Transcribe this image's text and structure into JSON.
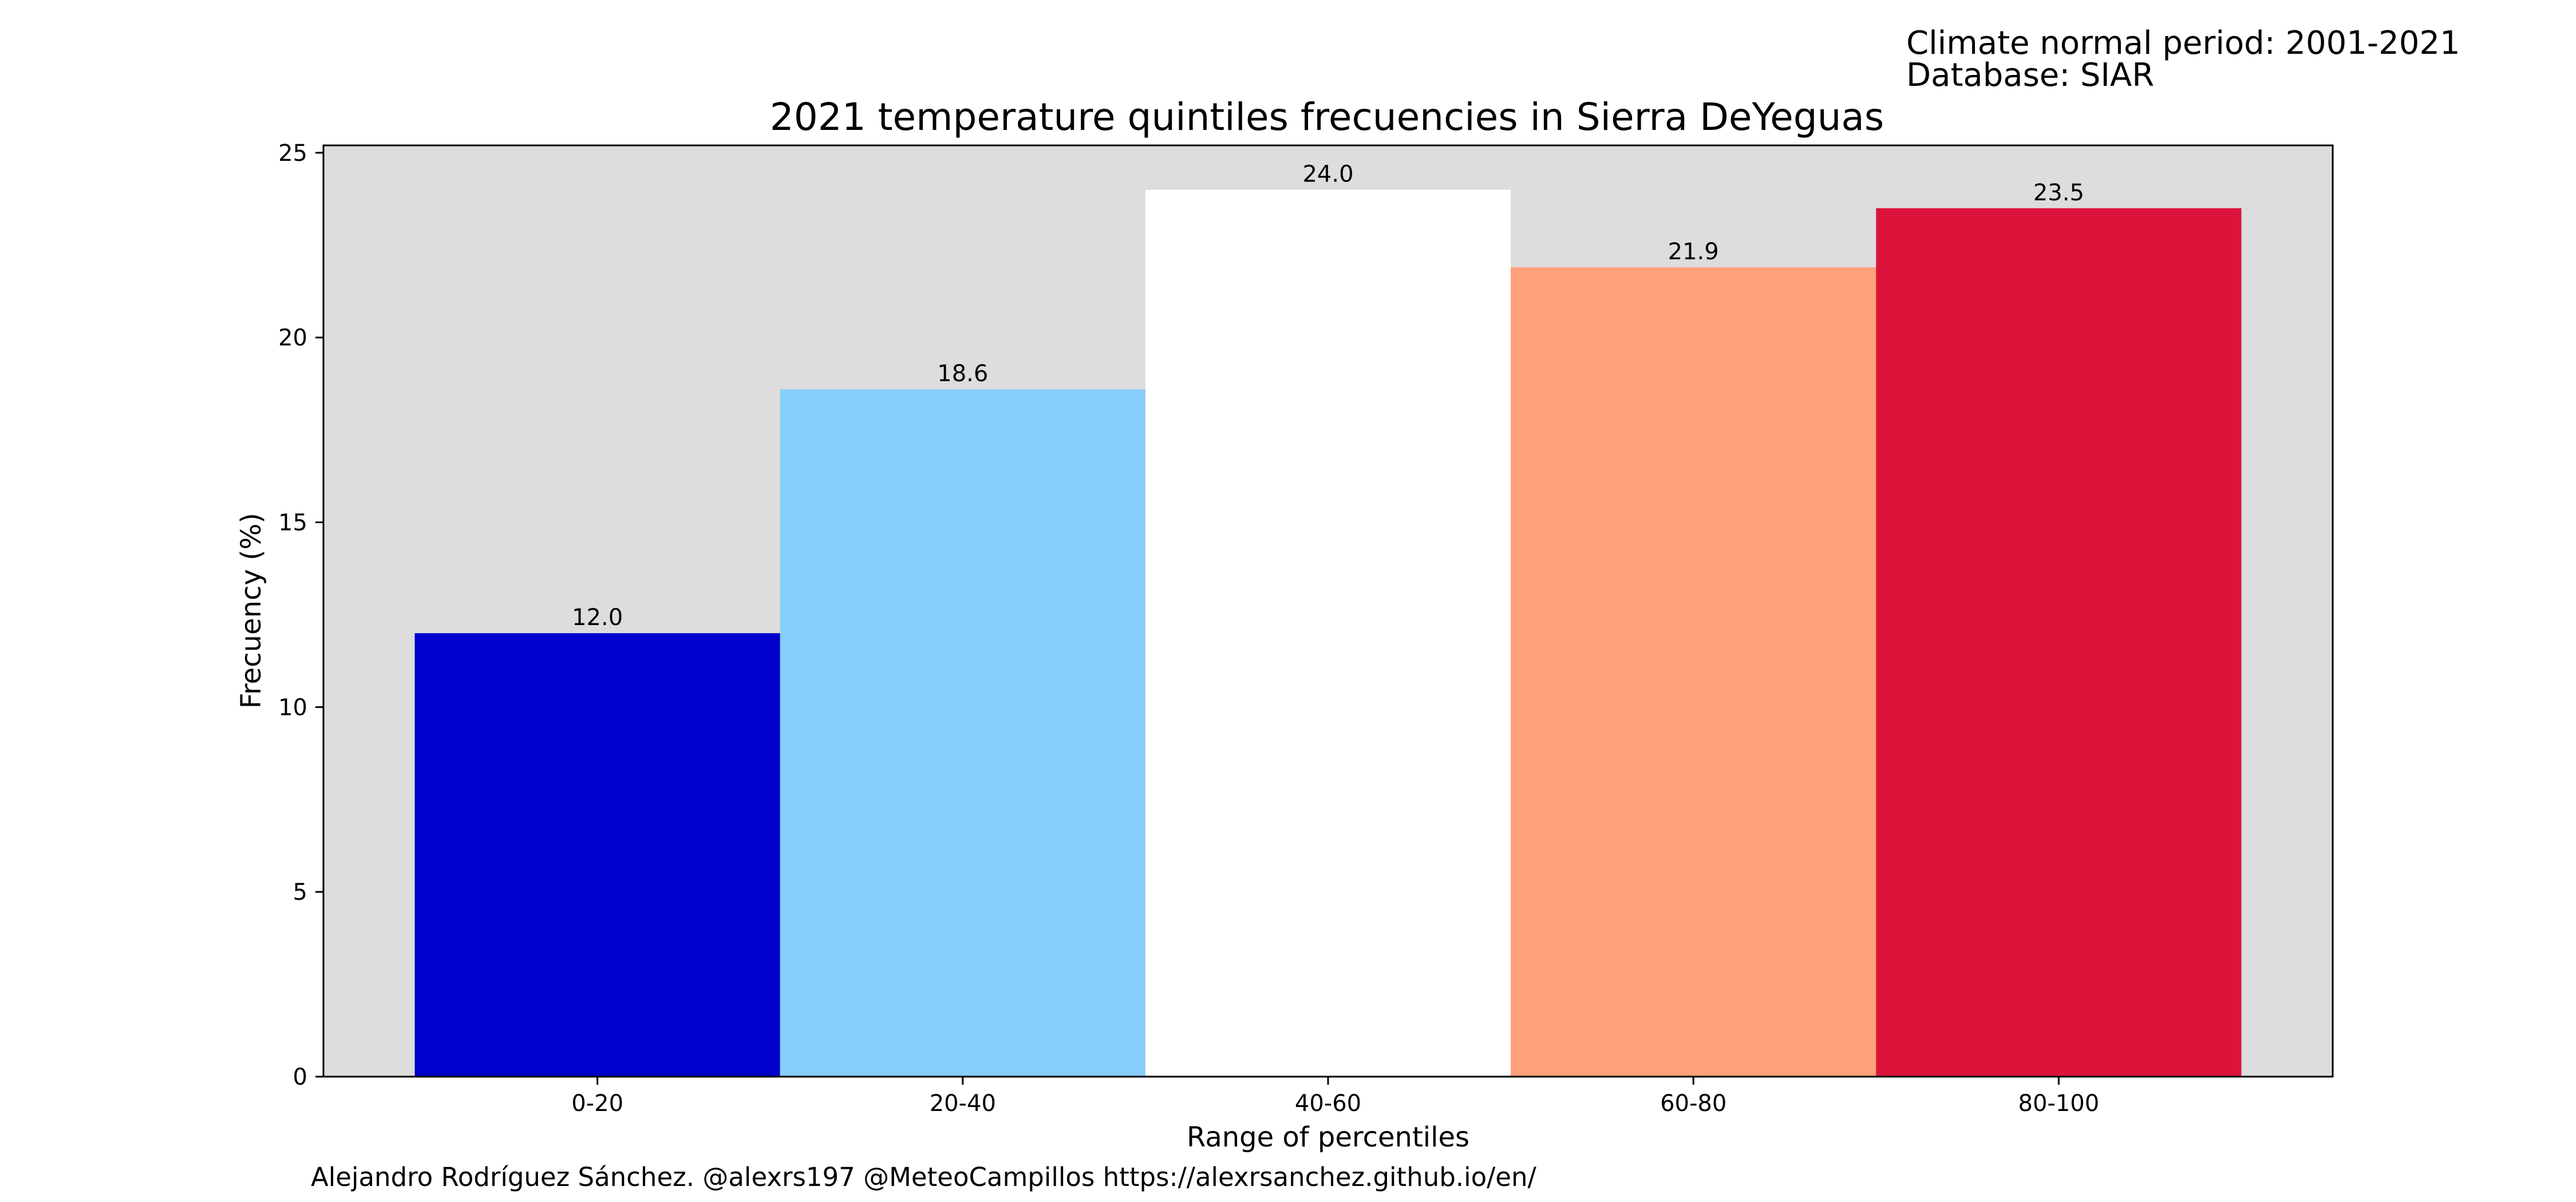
{
  "header": {
    "climate_period": "Climate normal period: 2001-2021",
    "database": "Database: SIAR"
  },
  "footer": {
    "credit": "Alejandro Rodríguez Sánchez. @alexrs197 @MeteoCampillos   https://alexrsanchez.github.io/en/"
  },
  "chart_data": {
    "type": "bar",
    "title": "2021 temperature quintiles frecuencies in Sierra DeYeguas",
    "xlabel": "Range of percentiles",
    "ylabel": "Frecuency (%)",
    "categories": [
      "0-20",
      "20-40",
      "40-60",
      "60-80",
      "80-100"
    ],
    "values": [
      12.0,
      18.6,
      24.0,
      21.9,
      23.5
    ],
    "data_labels": [
      "12.0",
      "18.6",
      "24.0",
      "21.9",
      "23.5"
    ],
    "bar_colors": [
      "#0000cd",
      "#87cefa",
      "#ffffff",
      "#ffa07a",
      "#dc143c"
    ],
    "plot_background": "#dddddd",
    "ylim": [
      0,
      25.2
    ],
    "yticks": [
      0,
      5,
      10,
      15,
      20,
      25
    ],
    "grid": false,
    "legend": false
  }
}
